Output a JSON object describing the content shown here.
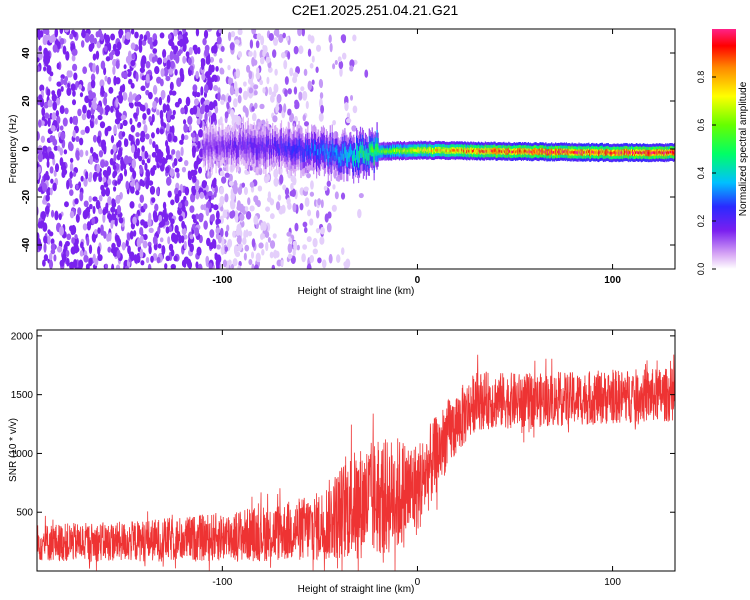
{
  "title": "C2E1.2025.251.04.21.G21",
  "chart_data": [
    {
      "type": "heatmap",
      "title": "C2E1.2025.251.04.21.G21",
      "xlabel": "Height of straight line (km)",
      "ylabel": "Frequency (Hz)",
      "xlim": [
        -195,
        132
      ],
      "ylim": [
        -50,
        50
      ],
      "x_ticks": [
        -100,
        0,
        100
      ],
      "y_ticks": [
        -40,
        -20,
        0,
        20,
        40
      ],
      "colorbar": {
        "label": "Normalized spectral amplitude",
        "range": [
          0,
          1
        ],
        "ticks": [
          0.0,
          0.2,
          0.4,
          0.6,
          0.8
        ],
        "tick_labels": [
          "0.0",
          "0.2",
          "0.4",
          "0.6",
          "0.8"
        ]
      },
      "signal_track": {
        "start_km": -110,
        "end_km": 132,
        "frequency_hz": [
          [
            -110,
            1.5
          ],
          [
            -90,
            1.0
          ],
          [
            -60,
            0.0
          ],
          [
            -35,
            -3.0
          ],
          [
            -20,
            -1.0
          ],
          [
            0,
            -0.5
          ],
          [
            50,
            -1.0
          ],
          [
            100,
            -1.5
          ],
          [
            132,
            -1.5
          ]
        ],
        "peak_amplitude": [
          [
            -110,
            0.15
          ],
          [
            -70,
            0.22
          ],
          [
            -40,
            0.35
          ],
          [
            -20,
            0.55
          ],
          [
            0,
            0.7
          ],
          [
            40,
            0.9
          ],
          [
            132,
            0.95
          ]
        ]
      },
      "noise_extent_km": [
        -195,
        -25
      ]
    },
    {
      "type": "line",
      "title": "",
      "xlabel": "Height of straight line (km)",
      "ylabel": "SNR (10 * v/v)",
      "xlim": [
        -195,
        132
      ],
      "ylim": [
        0,
        2050
      ],
      "x_ticks": [
        -100,
        0,
        100
      ],
      "y_ticks": [
        500,
        1000,
        1500,
        2000
      ],
      "series": [
        {
          "name": "SNR",
          "color": "#ee3333",
          "envelope_x": [
            -195,
            -150,
            -110,
            -70,
            -50,
            -35,
            -25,
            -10,
            0,
            15,
            30,
            60,
            100,
            132
          ],
          "envelope_center": [
            240,
            250,
            280,
            330,
            380,
            550,
            600,
            650,
            700,
            1150,
            1450,
            1450,
            1480,
            1500
          ],
          "envelope_spread": [
            160,
            170,
            200,
            250,
            300,
            450,
            500,
            500,
            400,
            300,
            250,
            230,
            230,
            230
          ]
        }
      ]
    }
  ]
}
